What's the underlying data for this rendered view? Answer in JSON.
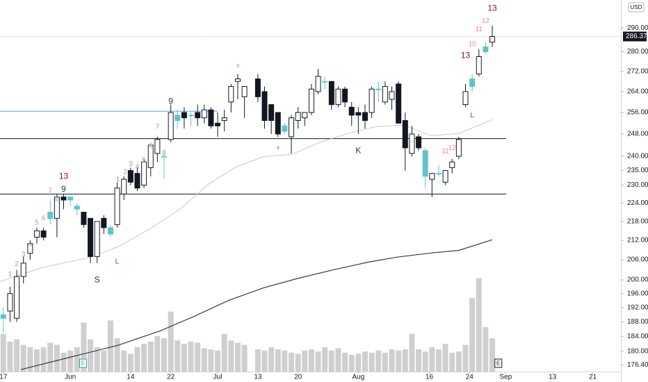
{
  "chart_data": {
    "type": "candlestick",
    "log_scale": true,
    "currency": "USD",
    "x": [
      0,
      1,
      2,
      3,
      4,
      5,
      6,
      7,
      8,
      9,
      10,
      11,
      12,
      13,
      14,
      15,
      16,
      17,
      18,
      19,
      20,
      21,
      22,
      23,
      24,
      25,
      26,
      27,
      28,
      29,
      30,
      31,
      32,
      33,
      34,
      35,
      36,
      38,
      39,
      40,
      41,
      42,
      43,
      44,
      45,
      46,
      47,
      48,
      49,
      50,
      51,
      52,
      53,
      54,
      55,
      56,
      57,
      58,
      59,
      60,
      61,
      62,
      63,
      64,
      65,
      66,
      67,
      68,
      69,
      70,
      71,
      72,
      73
    ],
    "open": [
      189,
      191,
      189,
      201,
      208,
      213,
      215,
      219,
      219,
      226,
      225,
      223,
      221,
      219,
      207,
      219,
      216,
      217,
      227,
      235,
      234,
      230,
      236,
      241,
      240,
      246,
      255,
      256,
      255,
      256,
      254,
      257,
      252,
      253,
      260,
      268,
      262,
      269,
      264,
      259,
      256,
      251,
      247,
      253,
      254,
      256,
      264,
      268,
      268,
      259,
      265,
      258,
      256,
      256,
      256,
      265,
      260,
      261,
      267,
      253,
      241,
      247,
      242,
      232,
      234,
      231,
      236,
      240,
      259,
      266,
      271,
      280,
      284
    ],
    "high": [
      192,
      198,
      203,
      207,
      212,
      216,
      216,
      225,
      227,
      227,
      226,
      224,
      221,
      219,
      218,
      220,
      217,
      231,
      233,
      236,
      236,
      239,
      244,
      247,
      241,
      259,
      257,
      258,
      256,
      259,
      259,
      258,
      256,
      257,
      267,
      271,
      266,
      271,
      266,
      259,
      256,
      252,
      255,
      258,
      256,
      267,
      273,
      270,
      268,
      266,
      266,
      260,
      258,
      259,
      266,
      268,
      268,
      266,
      268,
      256,
      251,
      248,
      243,
      234,
      237,
      235,
      239,
      247,
      267,
      271,
      281,
      284,
      291
    ],
    "low": [
      185,
      188,
      188,
      199,
      206,
      211,
      212,
      217,
      213,
      222,
      223,
      220,
      216,
      205,
      205,
      214,
      213,
      216,
      225,
      230,
      228,
      229,
      233,
      238,
      232,
      245,
      250,
      250,
      251,
      251,
      252,
      250,
      247,
      249,
      256,
      261,
      254,
      260,
      250,
      248,
      247,
      248,
      241,
      250,
      251,
      255,
      263,
      265,
      257,
      258,
      258,
      251,
      248,
      250,
      254,
      260,
      259,
      257,
      252,
      235,
      240,
      242,
      229,
      226,
      233,
      230,
      234,
      239,
      258,
      264,
      270,
      279,
      282
    ],
    "close": [
      190,
      196,
      201,
      205,
      211,
      215,
      213,
      221,
      226,
      225,
      226,
      222,
      217,
      207,
      218,
      216,
      214,
      229,
      232,
      231,
      229,
      238,
      244,
      246,
      240,
      256,
      253,
      254,
      255,
      254,
      257,
      251,
      251,
      254,
      266,
      269,
      266,
      262,
      253,
      253,
      248,
      249,
      254,
      256,
      256,
      265,
      270,
      268,
      259,
      265,
      260,
      255,
      255,
      253,
      265,
      265,
      266,
      264,
      252,
      243,
      248,
      243,
      233,
      234,
      234,
      235,
      238,
      246,
      264,
      269,
      278,
      282,
      286.37
    ],
    "colors": [
      "#5fc4c8",
      "#ffffff",
      "#ffffff",
      "#ffffff",
      "#ffffff",
      "#ffffff",
      "#131722",
      "#5fc4c8",
      "#ffffff",
      "#131722",
      "#5fc4c8",
      "#5fc4c8",
      "#131722",
      "#131722",
      "#ffffff",
      "#131722",
      "#5fc4c8",
      "#ffffff",
      "#ffffff",
      "#131722",
      "#131722",
      "#ffffff",
      "#ffffff",
      "#ffffff",
      "#5fc4c8",
      "#ffffff",
      "#5fc4c8",
      "#131722",
      "#5fc4c8",
      "#131722",
      "#ffffff",
      "#131722",
      "#131722",
      "#ffffff",
      "#ffffff",
      "#ffffff",
      "#ffffff",
      "#131722",
      "#131722",
      "#131722",
      "#131722",
      "#5fc4c8",
      "#ffffff",
      "#ffffff",
      "#ffffff",
      "#ffffff",
      "#ffffff",
      "#5fc4c8",
      "#131722",
      "#ffffff",
      "#131722",
      "#131722",
      "#131722",
      "#131722",
      "#ffffff",
      "#5fc4c8",
      "#ffffff",
      "#ffffff",
      "#131722",
      "#131722",
      "#ffffff",
      "#131722",
      "#5fc4c8",
      "#ffffff",
      "#5fc4c8",
      "#ffffff",
      "#ffffff",
      "#ffffff",
      "#ffffff",
      "#5fc4c8",
      "#ffffff",
      "#5fc4c8",
      "#ffffff"
    ],
    "xlim": [
      -0.5,
      92.2
    ],
    "xticks": [
      {
        "value": 0,
        "label": "17"
      },
      {
        "value": 10,
        "label": "Jun"
      },
      {
        "value": 19,
        "label": "14"
      },
      {
        "value": 25,
        "label": "22"
      },
      {
        "value": 32,
        "label": "Jul"
      },
      {
        "value": 38,
        "label": "13"
      },
      {
        "value": 44,
        "label": "20"
      },
      {
        "value": 53,
        "label": "Aug"
      },
      {
        "value": 63.6,
        "label": "16"
      },
      {
        "value": 69.6,
        "label": "24"
      },
      {
        "value": 75,
        "label": "Sep"
      },
      {
        "value": 82,
        "label": "13"
      },
      {
        "value": 88,
        "label": "21"
      }
    ],
    "ylim": [
      174.7,
      302.2
    ],
    "yticks": [
      {
        "value": 290,
        "label": "290.00"
      },
      {
        "value": 280,
        "label": "280.00"
      },
      {
        "value": 272,
        "label": "272.00"
      },
      {
        "value": 264,
        "label": "264.00"
      },
      {
        "value": 256,
        "label": "256.00"
      },
      {
        "value": 248,
        "label": "248.00"
      },
      {
        "value": 240,
        "label": "240.00"
      },
      {
        "value": 235,
        "label": "235.00"
      },
      {
        "value": 230,
        "label": "230.00"
      },
      {
        "value": 224,
        "label": "224.00"
      },
      {
        "value": 218,
        "label": "218.00"
      },
      {
        "value": 212,
        "label": "212.00"
      },
      {
        "value": 206,
        "label": "206.00"
      },
      {
        "value": 200,
        "label": "200.00"
      },
      {
        "value": 196,
        "label": "196.00"
      },
      {
        "value": 192,
        "label": "192.00"
      },
      {
        "value": 188,
        "label": "188.00"
      },
      {
        "value": 184,
        "label": "184.00"
      },
      {
        "value": 180,
        "label": "180.00"
      },
      {
        "value": 176.4,
        "label": "176.40"
      }
    ],
    "volume": {
      "color": "#cfcfcf",
      "vlim": [
        0,
        100
      ],
      "values": [
        34,
        27,
        29,
        24,
        22,
        20,
        22,
        26,
        24,
        17,
        19,
        22,
        44,
        29,
        22,
        19,
        46,
        30,
        19,
        16,
        22,
        25,
        27,
        32,
        30,
        54,
        28,
        25,
        27,
        26,
        21,
        20,
        19,
        34,
        28,
        26,
        24,
        20,
        19,
        22,
        20,
        19,
        17,
        16,
        19,
        20,
        18,
        22,
        19,
        21,
        17,
        15,
        16,
        18,
        17,
        19,
        17,
        20,
        19,
        20,
        34,
        20,
        18,
        22,
        20,
        25,
        17,
        18,
        24,
        66,
        84,
        40,
        30
      ]
    },
    "moving_averages": [
      {
        "color": "#c8c8c8",
        "x": [
          -0.5,
          5.7,
          13,
          17.1,
          21.8,
          26.5,
          30.6,
          34.8,
          38.9,
          43.1,
          47.2,
          51.4,
          55.6,
          59.7,
          63.9,
          68,
          73
        ],
        "values": [
          199.5,
          203.6,
          206.8,
          210,
          215.5,
          222.2,
          230.3,
          236.3,
          239.9,
          240.7,
          244.9,
          248.2,
          250.7,
          251.3,
          247.4,
          248.2,
          253.3
        ]
      },
      {
        "color": "#3a3a3a",
        "x": [
          2.6,
          9.9,
          17.1,
          23.4,
          28.6,
          33.7,
          38.9,
          44.1,
          49.3,
          54.5,
          58.7,
          63.9,
          68,
          73
        ],
        "values": [
          175.2,
          178.4,
          181.6,
          185.5,
          189.6,
          194.1,
          197.7,
          200.5,
          203,
          205.3,
          206.8,
          208.1,
          208.9,
          212.2
        ]
      }
    ],
    "levels": [
      {
        "value": 246.3,
        "color": "#131722"
      },
      {
        "value": 227,
        "color": "#131722"
      },
      {
        "value": 256.5,
        "color": "#5b9bd5",
        "x_end": 32
      }
    ],
    "annotations": [
      {
        "text": "1",
        "x": 1,
        "y": 201.6,
        "color": "#9e9e9e"
      },
      {
        "text": "2",
        "x": 2,
        "y": 204.7,
        "color": "#9e9e9e"
      },
      {
        "text": "3",
        "x": 3,
        "y": 207.5,
        "color": "#9e9e9e"
      },
      {
        "text": "4",
        "x": 4,
        "y": 210.7,
        "color": "#9e9e9e"
      },
      {
        "text": "5",
        "x": 5,
        "y": 217.6,
        "color": "#9e9e9e"
      },
      {
        "text": "6",
        "x": 6,
        "y": 219,
        "color": "#9e9e9e"
      },
      {
        "text": "7",
        "x": 7,
        "y": 228,
        "color": "#9e9e9e"
      },
      {
        "text": "8",
        "x": 8,
        "y": 225.3,
        "color": "#9e9e9e"
      },
      {
        "text": "9",
        "x": 9,
        "y": 228.5,
        "color": "#333333"
      },
      {
        "text": "13",
        "x": 9,
        "y": 232.9,
        "color": "#880e4f"
      },
      {
        "text": "1",
        "x": 17.1,
        "y": 231.9,
        "color": "#9e9e9e"
      },
      {
        "text": "2",
        "x": 18.2,
        "y": 234.4,
        "color": "#9e9e9e"
      },
      {
        "text": "3",
        "x": 19,
        "y": 237.2,
        "color": "#9e9e9e"
      },
      {
        "text": "4",
        "x": 20,
        "y": 236.3,
        "color": "#9e9e9e"
      },
      {
        "text": "5",
        "x": 21,
        "y": 238.5,
        "color": "#9e9e9e"
      },
      {
        "text": "6",
        "x": 22,
        "y": 243.8,
        "color": "#9e9e9e"
      },
      {
        "text": "7",
        "x": 23,
        "y": 250.6,
        "color": "#9e9e9e"
      },
      {
        "text": "8",
        "x": 24,
        "y": 241.3,
        "color": "#9e9e9e"
      },
      {
        "text": "9",
        "x": 25,
        "y": 260.1,
        "color": "#333333"
      },
      {
        "text": "L",
        "x": 17,
        "y": 205.4,
        "color": "#c2185b"
      },
      {
        "text": "S",
        "x": 14,
        "y": 199.9,
        "color": "#333333"
      },
      {
        "text": "3",
        "x": 35,
        "y": 274.1,
        "color": "#26a69a"
      },
      {
        "text": "4",
        "x": 41,
        "y": 242.9,
        "color": "#26a69a"
      },
      {
        "text": "K",
        "x": 53,
        "y": 241.9,
        "color": "#333333"
      },
      {
        "text": "L",
        "x": 70,
        "y": 254.9,
        "color": "#c2185b"
      },
      {
        "text": "13",
        "x": 69,
        "y": 278.4,
        "color": "#880e4f"
      },
      {
        "text": "11",
        "x": 66,
        "y": 241.7,
        "color": "#e48aa8"
      },
      {
        "text": "12",
        "x": 67,
        "y": 242.9,
        "color": "#e48aa8"
      },
      {
        "text": "10",
        "x": 70,
        "y": 283,
        "color": "#e48aa8"
      },
      {
        "text": "11",
        "x": 71,
        "y": 289.4,
        "color": "#e48aa8"
      },
      {
        "text": "12",
        "x": 72,
        "y": 293,
        "color": "#e48aa8"
      },
      {
        "text": "13",
        "x": 73,
        "y": 298.4,
        "color": "#880e4f"
      }
    ],
    "events": [
      {
        "x": 11.9,
        "label": "E"
      },
      {
        "x": 73.9,
        "label": "E"
      }
    ]
  }
}
